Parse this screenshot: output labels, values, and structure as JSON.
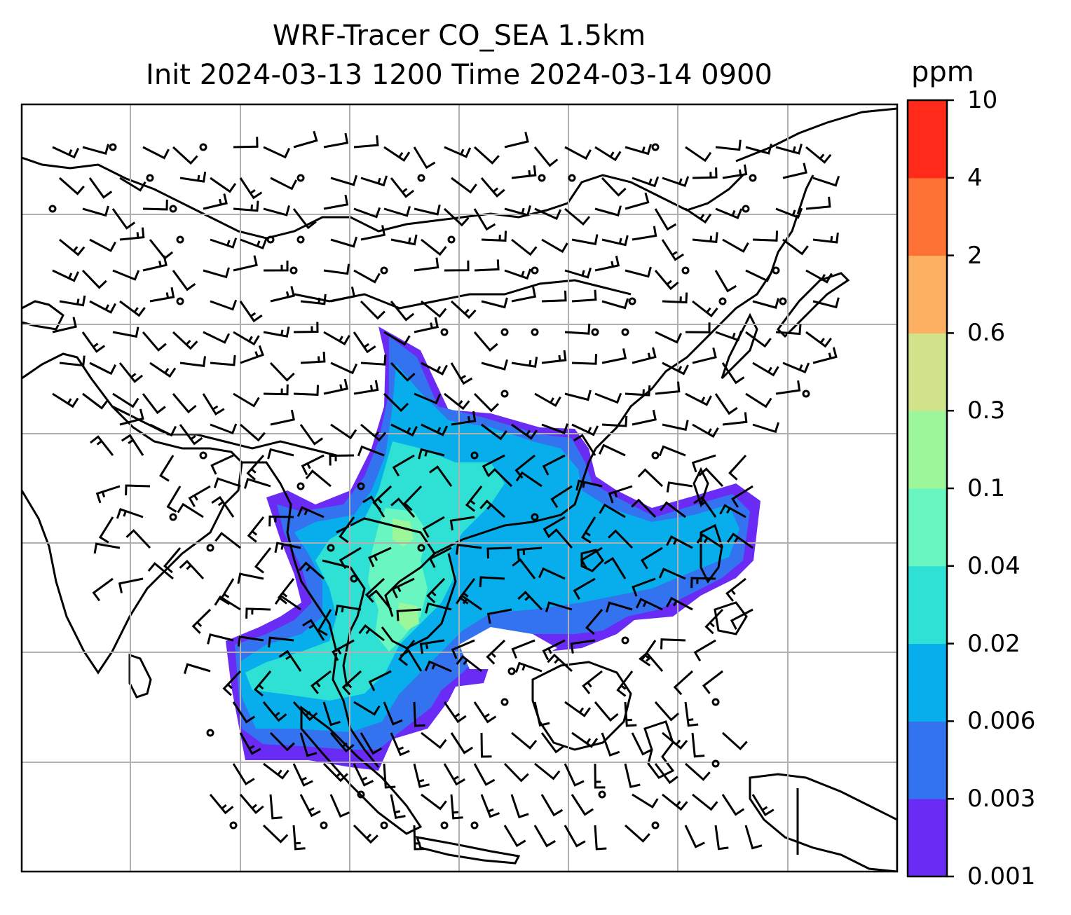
{
  "title": {
    "line1": "WRF-Tracer CO_SEA 1.5km",
    "line2": "Init 2024-03-13 1200 Time 2024-03-14 0900"
  },
  "colorbar": {
    "unit": "ppm",
    "levels": [
      "0.001",
      "0.003",
      "0.006",
      "0.02",
      "0.04",
      "0.1",
      "0.3",
      "0.6",
      "2",
      "4",
      "10"
    ],
    "colors": [
      "#6a2cf5",
      "#3373f0",
      "#07aeeb",
      "#2fe0d4",
      "#6af6c0",
      "#9cf79a",
      "#d0e28a",
      "#fdb062",
      "#ff7235",
      "#ff2a1a"
    ]
  },
  "map": {
    "gridlines": true,
    "features": [
      "coastlines",
      "country-borders",
      "wind-barbs",
      "CO tracer concentration"
    ]
  },
  "colors": {
    "background": "#ffffff",
    "grid": "#b0b0b0",
    "coast": "#000000"
  }
}
